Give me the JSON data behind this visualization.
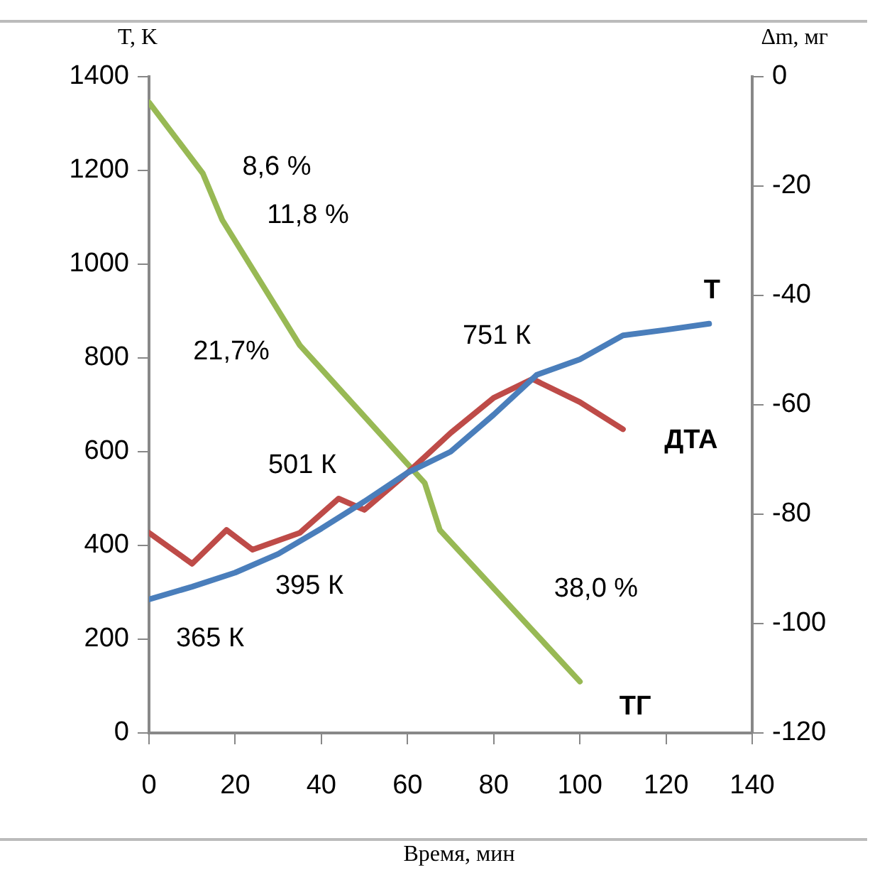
{
  "chart_data": {
    "type": "line",
    "xlabel": "Время, мин",
    "ylabel": "T, K",
    "y2label": "∆m, мг",
    "x": [
      0,
      10,
      20,
      30,
      40,
      50,
      60,
      70,
      80,
      90,
      100,
      110,
      120,
      130
    ],
    "xlim": [
      0,
      140
    ],
    "xticks": [
      0,
      20,
      40,
      60,
      80,
      100,
      120,
      140
    ],
    "ylim": [
      0,
      1400
    ],
    "yticks": [
      0,
      200,
      400,
      600,
      800,
      1000,
      1200,
      1400
    ],
    "y2lim": [
      -120,
      0
    ],
    "y2ticks": [
      -120,
      -100,
      -80,
      -60,
      -40,
      -20,
      0
    ],
    "grid": false,
    "legend": false,
    "marker": "none",
    "line_style": "solid",
    "series": [
      {
        "name": "Т",
        "color": "#4a7ebb",
        "values": [
          285,
          312,
          342,
          382,
          436,
          494,
          555,
          600,
          679,
          764,
          797,
          848,
          860,
          873
        ]
      },
      {
        "name": "ДТА",
        "color": "#be4b48",
        "x": [
          0,
          10,
          18,
          24,
          35,
          44,
          50,
          60,
          70,
          80,
          89,
          100,
          110
        ],
        "values": [
          427,
          361,
          433,
          391,
          427,
          500,
          476,
          555,
          640,
          715,
          755,
          706,
          648
        ]
      },
      {
        "name": "ТГ",
        "color": "#98b954",
        "axis": "y2",
        "x": [
          0,
          12.5,
          17,
          35,
          64,
          67.5,
          100
        ],
        "values": [
          -4.7,
          -17.7,
          -26.2,
          -49.1,
          -74.3,
          -82.9,
          -110.6
        ]
      }
    ],
    "annotations": [
      "8,6 %",
      "11,8 %",
      "21,7%",
      "751 К",
      "501 К",
      "395 К",
      "365 К",
      "38,0 %"
    ]
  }
}
